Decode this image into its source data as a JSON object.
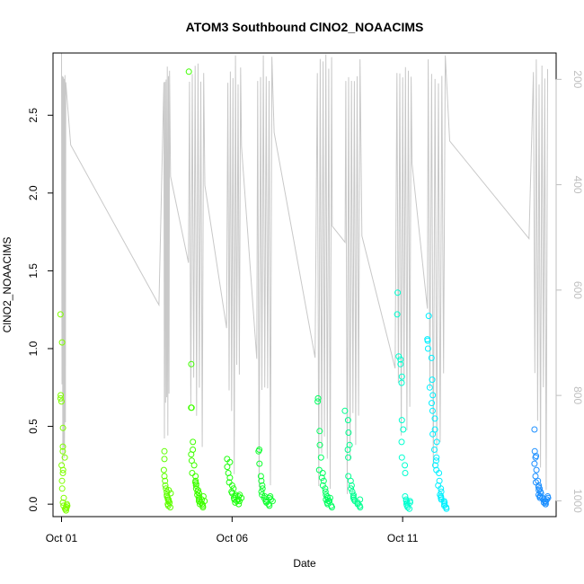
{
  "chart_data": {
    "type": "scatter",
    "title": "ATOM3 Southbound ClNO2_NOAACIMS",
    "xlabel": "Date",
    "ylabel": "ClNO2_NOAACIMS",
    "x_tick_labels": [
      "Oct 01",
      "Oct 06",
      "Oct 11"
    ],
    "x_ticks": [
      "2017-10-01",
      "2017-10-06",
      "2017-10-11"
    ],
    "xlim": [
      "2017-09-30T18:00",
      "2017-10-15T12:00"
    ],
    "ylim": [
      -0.08,
      2.9
    ],
    "y_ticks": [
      0.0,
      0.5,
      1.0,
      1.5,
      2.0,
      2.5
    ],
    "y_tick_labels": [
      "0.0",
      "0.5",
      "1.0",
      "1.5",
      "2.0",
      "2.5"
    ],
    "right_axis": {
      "label": "",
      "ticks": [
        200,
        400,
        600,
        800,
        1000
      ],
      "tick_labels": [
        "200",
        "400",
        "600",
        "800",
        "1000"
      ],
      "reversed": true,
      "color": "#bfbfbf"
    },
    "grid": false,
    "legend": "none",
    "marker": "open-circle",
    "colors": {
      "early": "#7fff00",
      "middle": "#00ff7f",
      "late": "#00ffff",
      "end": "#1e90ff",
      "pressure_trace": "#c8c8c8"
    },
    "flights": [
      {
        "start": "2017-10-01T00:00",
        "end": "2017-10-01T03:00",
        "color": "#7fff00",
        "values": [
          1.22,
          1.04,
          0.7,
          0.68,
          0.66,
          0.49,
          0.37,
          0.34,
          0.3,
          0.25,
          0.22,
          0.2,
          0.15,
          0.1,
          0.04,
          0.01,
          -0.01,
          -0.02,
          -0.03,
          -0.04,
          -0.03,
          -0.02,
          -0.01,
          0.0
        ]
      },
      {
        "start": "2017-10-04T00:00",
        "end": "2017-10-04T04:00",
        "color": "#5fff00",
        "values": [
          0.34,
          0.29,
          0.22,
          0.18,
          0.15,
          0.12,
          0.1,
          0.08,
          0.06,
          0.05,
          0.04,
          0.03,
          0.02,
          0.01,
          0.0,
          -0.01,
          -0.02,
          0.07,
          0.09,
          0.03
        ]
      },
      {
        "start": "2017-10-04T18:00",
        "end": "2017-10-05T04:00",
        "color": "#3fff00",
        "values": [
          2.78,
          0.9,
          0.62,
          0.62,
          0.4,
          0.35,
          0.32,
          0.28,
          0.25,
          0.2,
          0.18,
          0.15,
          0.14,
          0.13,
          0.12,
          0.1,
          0.09,
          0.08,
          0.07,
          0.06,
          0.05,
          0.04,
          0.03,
          0.02,
          0.01,
          0.0,
          -0.01,
          -0.02,
          0.03,
          0.05,
          0.02,
          0.0
        ]
      },
      {
        "start": "2017-10-05T21:00",
        "end": "2017-10-06T06:00",
        "color": "#1fff10",
        "values": [
          0.29,
          0.27,
          0.24,
          0.2,
          0.17,
          0.14,
          0.12,
          0.1,
          0.08,
          0.07,
          0.06,
          0.05,
          0.04,
          0.03,
          0.02,
          0.01,
          0.0,
          0.05,
          0.06,
          0.03,
          0.02,
          0.04
        ]
      },
      {
        "start": "2017-10-06T18:00",
        "end": "2017-10-07T04:00",
        "color": "#10ff30",
        "values": [
          0.35,
          0.34,
          0.26,
          0.18,
          0.15,
          0.12,
          0.1,
          0.08,
          0.06,
          0.05,
          0.04,
          0.03,
          0.02,
          0.01,
          0.0,
          -0.01,
          0.03,
          0.04,
          0.02,
          0.05
        ]
      },
      {
        "start": "2017-10-08T12:00",
        "end": "2017-10-08T22:00",
        "color": "#00ff60",
        "values": [
          0.68,
          0.66,
          0.47,
          0.38,
          0.3,
          0.22,
          0.2,
          0.17,
          0.15,
          0.12,
          0.1,
          0.08,
          0.06,
          0.05,
          0.04,
          0.03,
          0.02,
          0.01,
          0.0,
          -0.01,
          -0.02,
          0.02,
          0.04
        ]
      },
      {
        "start": "2017-10-09T08:00",
        "end": "2017-10-09T18:00",
        "color": "#00ff90",
        "values": [
          0.6,
          0.54,
          0.46,
          0.38,
          0.35,
          0.3,
          0.18,
          0.15,
          0.12,
          0.1,
          0.08,
          0.06,
          0.05,
          0.04,
          0.03,
          0.02,
          0.01,
          0.0,
          -0.01,
          -0.02,
          0.03
        ]
      },
      {
        "start": "2017-10-10T20:00",
        "end": "2017-10-11T06:00",
        "color": "#00ffd0",
        "values": [
          1.36,
          1.22,
          0.95,
          0.93,
          0.9,
          0.82,
          0.78,
          0.54,
          0.48,
          0.4,
          0.3,
          0.25,
          0.2,
          0.05,
          0.03,
          0.02,
          0.01,
          0.0,
          -0.01,
          -0.02,
          -0.03,
          0.02,
          0.01
        ]
      },
      {
        "start": "2017-10-11T18:00",
        "end": "2017-10-12T06:00",
        "color": "#00f0ff",
        "values": [
          1.21,
          1.06,
          1.05,
          1.0,
          0.94,
          0.8,
          0.75,
          0.7,
          0.65,
          0.6,
          0.55,
          0.48,
          0.45,
          0.4,
          0.35,
          0.3,
          0.28,
          0.25,
          0.22,
          0.2,
          0.15,
          0.12,
          0.1,
          0.08,
          0.06,
          0.05,
          0.04,
          0.03,
          0.02,
          0.01,
          0.0,
          -0.01,
          -0.02,
          -0.03
        ]
      },
      {
        "start": "2017-10-14T20:00",
        "end": "2017-10-15T06:00",
        "color": "#1e90ff",
        "values": [
          0.48,
          0.34,
          0.31,
          0.3,
          0.26,
          0.22,
          0.18,
          0.15,
          0.14,
          0.12,
          0.11,
          0.1,
          0.09,
          0.08,
          0.07,
          0.06,
          0.05,
          0.05,
          0.04,
          0.04,
          0.03,
          0.03,
          0.02,
          0.02,
          0.01,
          0.01,
          0.0,
          0.0,
          0.02,
          0.03,
          0.04,
          0.05
        ]
      }
    ]
  }
}
